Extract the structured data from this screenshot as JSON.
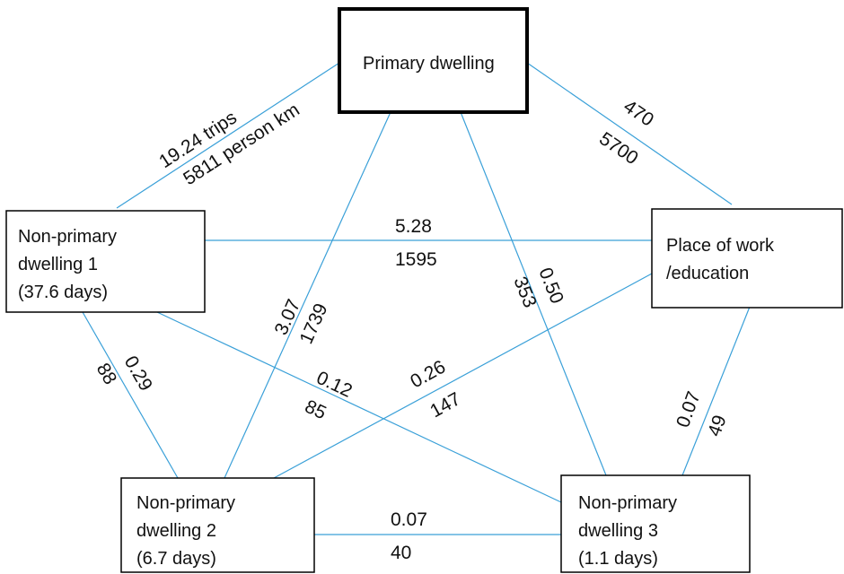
{
  "colors": {
    "edge": "#3aa0d8",
    "box_border": "#000000",
    "text": "#111111",
    "background": "#ffffff"
  },
  "nodes": {
    "primary": {
      "line1": "Primary dwelling"
    },
    "nonprimary1": {
      "line1": "Non-primary",
      "line2": "dwelling 1",
      "line3": "(37.6 days)"
    },
    "work": {
      "line1": "Place of work",
      "line2": "/education"
    },
    "nonprimary2": {
      "line1": "Non-primary",
      "line2": "dwelling 2",
      "line3": "(6.7 days)"
    },
    "nonprimary3": {
      "line1": "Non-primary",
      "line2": "dwelling 3",
      "line3": "(1.1 days)"
    }
  },
  "edges": {
    "primary_np1": {
      "trips": "19.24 trips",
      "km": "5811 person km"
    },
    "primary_work": {
      "trips": "470",
      "km": "5700"
    },
    "np1_work": {
      "trips": "5.28",
      "km": "1595"
    },
    "primary_np2": {
      "trips": "3.07",
      "km": "1739"
    },
    "primary_np3": {
      "trips": "0.50",
      "km": "353"
    },
    "np1_np2": {
      "trips": "0.29",
      "km": "88"
    },
    "np1_np3": {
      "trips": "0.12",
      "km": "85"
    },
    "work_np2": {
      "trips": "0.26",
      "km": "147"
    },
    "work_np3": {
      "trips": "0.07",
      "km": "49"
    },
    "np2_np3": {
      "trips": "0.07",
      "km": "40"
    }
  }
}
